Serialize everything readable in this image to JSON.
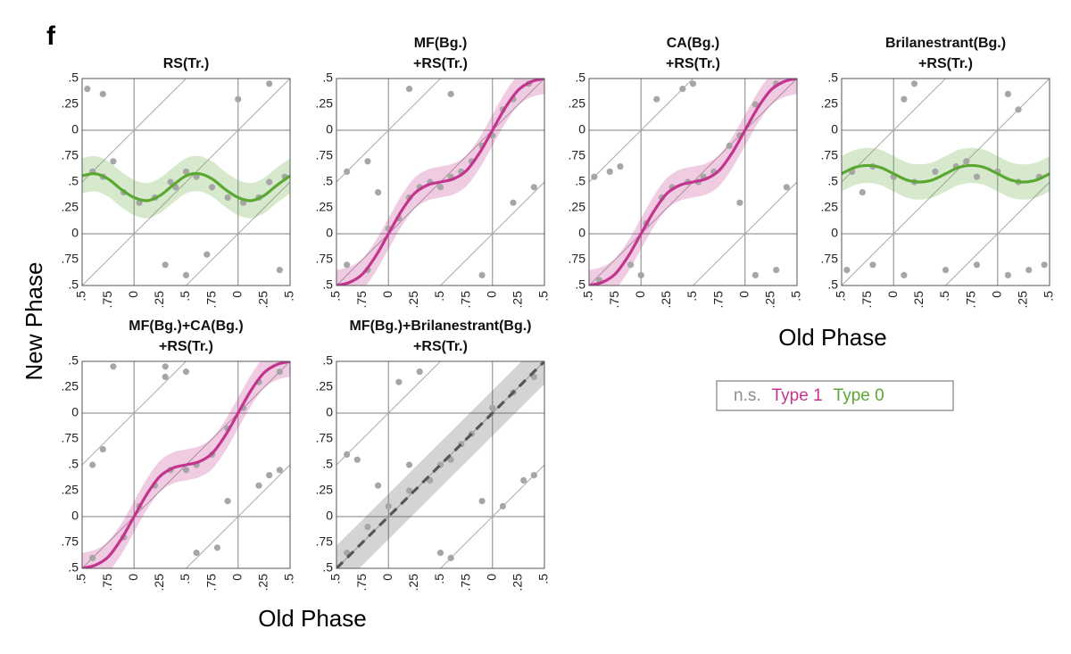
{
  "panel_label": "f",
  "ylabel": "New Phase",
  "xlabels": [
    "Old Phase",
    "Old Phase"
  ],
  "legend": [
    {
      "name": "n.s.",
      "color": "#8c8c8c"
    },
    {
      "name": "Type 1",
      "color": "#c3348f"
    },
    {
      "name": "Type 0",
      "color": "#5aa832"
    }
  ],
  "chart_data": [
    {
      "type": "scatter",
      "title": [
        "RS(Tr.)"
      ],
      "xlim": [
        -0.5,
        1.5
      ],
      "ylim": [
        -0.5,
        1.5
      ],
      "xticks": [
        {
          "value": -0.5,
          "label": ".5"
        },
        {
          "value": -0.25,
          "label": ".75"
        },
        0,
        {
          "value": 0.25,
          "label": ".25"
        },
        {
          "value": 0.5,
          "label": ".5"
        },
        {
          "value": 0.75,
          "label": ".75"
        },
        {
          "value": 1,
          "label": "0"
        },
        {
          "value": 1.25,
          "label": ".25"
        },
        {
          "value": 1.5,
          "label": ".5"
        }
      ],
      "yticks": [
        {
          "value": -0.5,
          "label": ".5"
        },
        {
          "value": -0.25,
          "label": ".75"
        },
        0,
        {
          "value": 0.25,
          "label": ".25"
        },
        {
          "value": 0.5,
          "label": ".5"
        },
        {
          "value": 0.75,
          "label": ".75"
        },
        {
          "value": 1,
          "label": "0"
        },
        {
          "value": 1.25,
          "label": ".25"
        },
        {
          "value": 1.5,
          "label": ".5"
        }
      ],
      "scatter": {
        "color": "#a6a6a6",
        "x": [
          -0.4,
          -0.3,
          -0.1,
          0.05,
          0.2,
          0.35,
          0.5,
          0.6,
          0.75,
          0.9,
          1.05,
          1.2,
          1.3,
          1.45,
          -0.45,
          -0.3,
          0.3,
          0.5,
          0.7,
          1.0,
          1.3,
          1.4,
          -0.2,
          0.4
        ],
        "y": [
          0.6,
          0.55,
          0.4,
          0.3,
          0.35,
          0.5,
          0.6,
          0.55,
          0.45,
          0.35,
          0.3,
          0.35,
          0.5,
          0.55,
          1.4,
          1.35,
          -0.3,
          -0.4,
          -0.2,
          1.3,
          1.45,
          -0.35,
          0.7,
          0.45
        ]
      },
      "curve": {
        "color": "#5aa832",
        "dashed": false,
        "band": 0.17,
        "x": [
          -0.5,
          -0.375,
          -0.25,
          -0.125,
          0,
          0.125,
          0.25,
          0.375,
          0.5,
          0.625,
          0.75,
          0.875,
          1,
          1.125,
          1.25,
          1.375,
          1.5
        ],
        "y": [
          0.56,
          0.58,
          0.53,
          0.43,
          0.35,
          0.32,
          0.37,
          0.47,
          0.56,
          0.58,
          0.53,
          0.43,
          0.35,
          0.32,
          0.37,
          0.47,
          0.56
        ]
      }
    },
    {
      "type": "scatter",
      "title": [
        "MF(Bg.)",
        "+RS(Tr.)"
      ],
      "xlim": [
        -0.5,
        1.5
      ],
      "ylim": [
        -0.5,
        1.5
      ],
      "xticks": [
        {
          "value": -0.5,
          "label": ".5"
        },
        {
          "value": -0.25,
          "label": ".75"
        },
        0,
        {
          "value": 0.25,
          "label": ".25"
        },
        {
          "value": 0.5,
          "label": ".5"
        },
        {
          "value": 0.75,
          "label": ".75"
        },
        {
          "value": 1,
          "label": "0"
        },
        {
          "value": 1.25,
          "label": ".25"
        },
        {
          "value": 1.5,
          "label": ".5"
        }
      ],
      "yticks": [
        {
          "value": -0.5,
          "label": ".5"
        },
        {
          "value": -0.25,
          "label": ".75"
        },
        0,
        {
          "value": 0.25,
          "label": ".25"
        },
        {
          "value": 0.5,
          "label": ".5"
        },
        {
          "value": 0.75,
          "label": ".75"
        },
        {
          "value": 1,
          "label": "0"
        },
        {
          "value": 1.25,
          "label": ".25"
        },
        {
          "value": 1.5,
          "label": ".5"
        }
      ],
      "scatter": {
        "color": "#a6a6a6",
        "x": [
          -0.4,
          -0.2,
          0,
          0.1,
          0.2,
          0.3,
          0.4,
          0.5,
          0.6,
          0.7,
          0.8,
          0.9,
          1.0,
          1.1,
          1.2,
          1.35,
          -0.4,
          -0.2,
          0.2,
          0.6,
          1.2,
          1.4,
          0.9,
          -0.1
        ],
        "y": [
          -0.3,
          -0.35,
          0.05,
          0.15,
          0.35,
          0.45,
          0.5,
          0.45,
          0.55,
          0.6,
          0.7,
          0.85,
          0.95,
          1.2,
          1.3,
          1.45,
          0.6,
          0.7,
          1.4,
          1.35,
          0.3,
          0.45,
          -0.4,
          0.4
        ]
      },
      "curve": {
        "color": "#c3348f",
        "dashed": false,
        "band": 0.15,
        "x": [
          -0.5,
          -0.375,
          -0.25,
          -0.125,
          0,
          0.125,
          0.25,
          0.375,
          0.5,
          0.625,
          0.75,
          0.875,
          1,
          1.125,
          1.25,
          1.375,
          1.5
        ],
        "y": [
          -0.5,
          -0.47,
          -0.39,
          -0.22,
          0,
          0.22,
          0.39,
          0.47,
          0.5,
          0.53,
          0.61,
          0.78,
          1,
          1.22,
          1.39,
          1.47,
          1.5
        ]
      }
    },
    {
      "type": "scatter",
      "title": [
        "CA(Bg.)",
        "+RS(Tr.)"
      ],
      "xlim": [
        -0.5,
        1.5
      ],
      "ylim": [
        -0.5,
        1.5
      ],
      "xticks": [
        {
          "value": -0.5,
          "label": ".5"
        },
        {
          "value": -0.25,
          "label": ".75"
        },
        0,
        {
          "value": 0.25,
          "label": ".25"
        },
        {
          "value": 0.5,
          "label": ".5"
        },
        {
          "value": 0.75,
          "label": ".75"
        },
        {
          "value": 1,
          "label": "0"
        },
        {
          "value": 1.25,
          "label": ".25"
        },
        {
          "value": 1.5,
          "label": ".5"
        }
      ],
      "yticks": [
        {
          "value": -0.5,
          "label": ".5"
        },
        {
          "value": -0.25,
          "label": ".75"
        },
        0,
        {
          "value": 0.25,
          "label": ".25"
        },
        {
          "value": 0.5,
          "label": ".5"
        },
        {
          "value": 0.75,
          "label": ".75"
        },
        {
          "value": 1,
          "label": "0"
        },
        {
          "value": 1.25,
          "label": ".25"
        },
        {
          "value": 1.5,
          "label": ".5"
        }
      ],
      "scatter": {
        "color": "#a6a6a6",
        "x": [
          -0.4,
          -0.1,
          0.05,
          0.2,
          0.3,
          0.45,
          0.55,
          0.7,
          0.85,
          0.95,
          1.1,
          1.3,
          -0.3,
          -0.2,
          0.15,
          0.4,
          0.5,
          0.95,
          1.1,
          1.3,
          -0.45,
          1.4,
          0.0,
          0.6
        ],
        "y": [
          -0.45,
          -0.3,
          0.1,
          0.35,
          0.45,
          0.5,
          0.5,
          0.6,
          0.85,
          0.95,
          1.25,
          1.45,
          0.6,
          0.65,
          1.3,
          1.4,
          1.45,
          0.3,
          -0.4,
          -0.35,
          0.55,
          0.45,
          -0.4,
          0.55
        ]
      },
      "curve": {
        "color": "#c3348f",
        "dashed": false,
        "band": 0.15,
        "x": [
          -0.5,
          -0.375,
          -0.25,
          -0.125,
          0,
          0.125,
          0.25,
          0.375,
          0.5,
          0.625,
          0.75,
          0.875,
          1,
          1.125,
          1.25,
          1.375,
          1.5
        ],
        "y": [
          -0.5,
          -0.47,
          -0.39,
          -0.22,
          0,
          0.22,
          0.39,
          0.47,
          0.5,
          0.53,
          0.61,
          0.78,
          1,
          1.22,
          1.39,
          1.47,
          1.5
        ]
      }
    },
    {
      "type": "scatter",
      "title": [
        "Brilanestrant(Bg.)",
        "+RS(Tr.)"
      ],
      "xlim": [
        -0.5,
        1.5
      ],
      "ylim": [
        -0.5,
        1.5
      ],
      "xticks": [
        {
          "value": -0.5,
          "label": ".5"
        },
        {
          "value": -0.25,
          "label": ".75"
        },
        0,
        {
          "value": 0.25,
          "label": ".25"
        },
        {
          "value": 0.5,
          "label": ".5"
        },
        {
          "value": 0.75,
          "label": ".75"
        },
        {
          "value": 1,
          "label": "0"
        },
        {
          "value": 1.25,
          "label": ".25"
        },
        {
          "value": 1.5,
          "label": ".5"
        }
      ],
      "yticks": [
        {
          "value": -0.5,
          "label": ".5"
        },
        {
          "value": -0.25,
          "label": ".75"
        },
        0,
        {
          "value": 0.25,
          "label": ".25"
        },
        {
          "value": 0.5,
          "label": ".5"
        },
        {
          "value": 0.75,
          "label": ".75"
        },
        {
          "value": 1,
          "label": "0"
        },
        {
          "value": 1.25,
          "label": ".25"
        },
        {
          "value": 1.5,
          "label": ".5"
        }
      ],
      "scatter": {
        "color": "#a6a6a6",
        "x": [
          -0.4,
          -0.2,
          0.0,
          0.2,
          0.4,
          0.6,
          0.8,
          1.0,
          1.2,
          1.4,
          -0.45,
          -0.2,
          0.1,
          0.5,
          0.8,
          1.1,
          1.3,
          1.45,
          0.1,
          0.2,
          1.1,
          1.2,
          -0.3,
          0.7
        ],
        "y": [
          0.6,
          0.65,
          0.55,
          0.5,
          0.6,
          0.65,
          0.55,
          0.6,
          0.5,
          0.55,
          -0.35,
          -0.3,
          -0.4,
          -0.35,
          -0.3,
          -0.4,
          -0.35,
          -0.3,
          1.3,
          1.45,
          1.35,
          1.2,
          0.4,
          0.7
        ]
      },
      "curve": {
        "color": "#5aa832",
        "dashed": false,
        "band": 0.17,
        "x": [
          -0.5,
          -0.375,
          -0.25,
          -0.125,
          0,
          0.125,
          0.25,
          0.375,
          0.5,
          0.625,
          0.75,
          0.875,
          1,
          1.125,
          1.25,
          1.375,
          1.5
        ],
        "y": [
          0.58,
          0.64,
          0.66,
          0.64,
          0.58,
          0.52,
          0.5,
          0.52,
          0.58,
          0.64,
          0.66,
          0.64,
          0.58,
          0.52,
          0.5,
          0.52,
          0.58
        ]
      }
    },
    {
      "type": "scatter",
      "title": [
        "MF(Bg.)+CA(Bg.)",
        "+RS(Tr.)"
      ],
      "xlim": [
        -0.5,
        1.5
      ],
      "ylim": [
        -0.5,
        1.5
      ],
      "xticks": [
        {
          "value": -0.5,
          "label": ".5"
        },
        {
          "value": -0.25,
          "label": ".75"
        },
        0,
        {
          "value": 0.25,
          "label": ".25"
        },
        {
          "value": 0.5,
          "label": ".5"
        },
        {
          "value": 0.75,
          "label": ".75"
        },
        {
          "value": 1,
          "label": "0"
        },
        {
          "value": 1.25,
          "label": ".25"
        },
        {
          "value": 1.5,
          "label": ".5"
        }
      ],
      "yticks": [
        {
          "value": -0.5,
          "label": ".5"
        },
        {
          "value": -0.25,
          "label": ".75"
        },
        0,
        {
          "value": 0.25,
          "label": ".25"
        },
        {
          "value": 0.5,
          "label": ".5"
        },
        {
          "value": 0.75,
          "label": ".75"
        },
        {
          "value": 1,
          "label": "0"
        },
        {
          "value": 1.25,
          "label": ".25"
        },
        {
          "value": 1.5,
          "label": ".5"
        }
      ],
      "scatter": {
        "color": "#a6a6a6",
        "x": [
          -0.4,
          -0.1,
          0.05,
          0.2,
          0.35,
          0.5,
          0.6,
          0.75,
          0.9,
          1.05,
          1.2,
          1.4,
          -0.4,
          -0.3,
          0.3,
          0.5,
          1.2,
          1.3,
          0.6,
          0.8,
          -0.2,
          1.4,
          0.3,
          0.9
        ],
        "y": [
          -0.4,
          -0.2,
          0.1,
          0.3,
          0.45,
          0.45,
          0.5,
          0.6,
          0.85,
          1.05,
          1.3,
          1.4,
          0.5,
          0.65,
          1.35,
          1.4,
          0.3,
          0.4,
          -0.35,
          -0.3,
          1.45,
          0.45,
          1.45,
          0.15
        ]
      },
      "curve": {
        "color": "#c3348f",
        "dashed": false,
        "band": 0.15,
        "x": [
          -0.5,
          -0.375,
          -0.25,
          -0.125,
          0,
          0.125,
          0.25,
          0.375,
          0.5,
          0.625,
          0.75,
          0.875,
          1,
          1.125,
          1.25,
          1.375,
          1.5
        ],
        "y": [
          -0.5,
          -0.47,
          -0.39,
          -0.22,
          0,
          0.22,
          0.39,
          0.47,
          0.5,
          0.53,
          0.61,
          0.78,
          1,
          1.22,
          1.39,
          1.47,
          1.5
        ]
      }
    },
    {
      "type": "scatter",
      "title": [
        "MF(Bg.)+Brilanestrant(Bg.)",
        "+RS(Tr.)"
      ],
      "xlim": [
        -0.5,
        1.5
      ],
      "ylim": [
        -0.5,
        1.5
      ],
      "xticks": [
        {
          "value": -0.5,
          "label": ".5"
        },
        {
          "value": -0.25,
          "label": ".75"
        },
        0,
        {
          "value": 0.25,
          "label": ".25"
        },
        {
          "value": 0.5,
          "label": ".5"
        },
        {
          "value": 0.75,
          "label": ".75"
        },
        {
          "value": 1,
          "label": "0"
        },
        {
          "value": 1.25,
          "label": ".25"
        },
        {
          "value": 1.5,
          "label": ".5"
        }
      ],
      "yticks": [
        {
          "value": -0.5,
          "label": ".5"
        },
        {
          "value": -0.25,
          "label": ".75"
        },
        0,
        {
          "value": 0.25,
          "label": ".25"
        },
        {
          "value": 0.5,
          "label": ".5"
        },
        {
          "value": 0.75,
          "label": ".75"
        },
        {
          "value": 1,
          "label": "0"
        },
        {
          "value": 1.25,
          "label": ".25"
        },
        {
          "value": 1.5,
          "label": ".5"
        }
      ],
      "scatter": {
        "color": "#a6a6a6",
        "x": [
          -0.4,
          -0.2,
          0,
          0.2,
          0.4,
          0.5,
          0.6,
          0.8,
          1.0,
          1.2,
          1.4,
          -0.4,
          -0.3,
          0.1,
          0.3,
          0.5,
          0.6,
          0.9,
          1.1,
          1.3,
          1.4,
          0.2,
          0.7,
          -0.1
        ],
        "y": [
          -0.35,
          -0.1,
          0.1,
          0.25,
          0.35,
          0.5,
          0.55,
          0.8,
          1.05,
          1.2,
          1.35,
          0.6,
          0.55,
          1.3,
          1.4,
          -0.35,
          -0.4,
          0.15,
          0.1,
          0.35,
          0.4,
          0.5,
          0.7,
          0.3
        ]
      },
      "curve": {
        "color": "#555555",
        "dashed": true,
        "band": 0.22,
        "x": [
          -0.5,
          -0.375,
          -0.25,
          -0.125,
          0,
          0.125,
          0.25,
          0.375,
          0.5,
          0.625,
          0.75,
          0.875,
          1,
          1.125,
          1.25,
          1.375,
          1.5
        ],
        "y": [
          -0.5,
          -0.375,
          -0.25,
          -0.125,
          0,
          0.125,
          0.25,
          0.375,
          0.5,
          0.625,
          0.75,
          0.875,
          1,
          1.125,
          1.25,
          1.375,
          1.5
        ]
      }
    }
  ]
}
